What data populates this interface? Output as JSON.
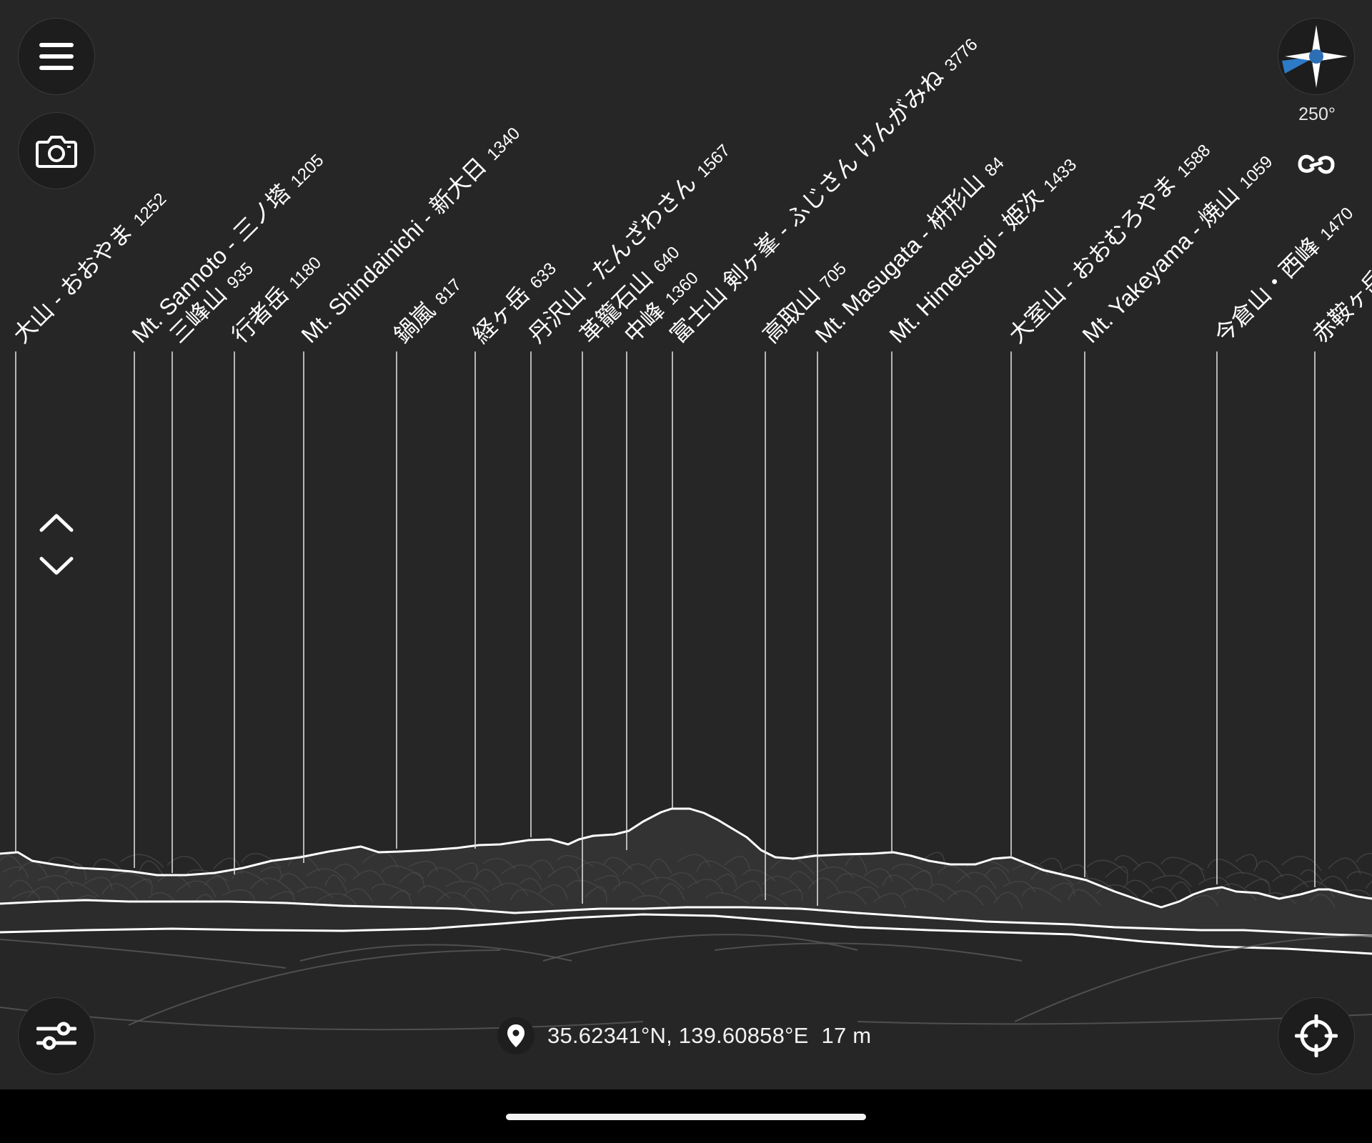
{
  "compass": {
    "heading": "250°"
  },
  "location": {
    "coordinates": "35.62341°N, 139.60858°E",
    "altitude": "17 m"
  },
  "peaks": [
    {
      "name": "大山 - おおやま",
      "elevation": "1252"
    },
    {
      "name": "Mt. Sannoto - 三ノ塔",
      "elevation": "1205"
    },
    {
      "name": "三峰山",
      "elevation": "935"
    },
    {
      "name": "行者岳",
      "elevation": "1180"
    },
    {
      "name": "Mt. Shindainichi - 新大日",
      "elevation": "1340"
    },
    {
      "name": "鍋嵐",
      "elevation": "817"
    },
    {
      "name": "経ヶ岳",
      "elevation": "633"
    },
    {
      "name": "丹沢山 - たんざわさん",
      "elevation": "1567"
    },
    {
      "name": "革籠石山",
      "elevation": "640"
    },
    {
      "name": "中峰",
      "elevation": "1360"
    },
    {
      "name": "富士山 剣ヶ峯 - ふじさん けんがみね",
      "elevation": "3776"
    },
    {
      "name": "高取山",
      "elevation": "705"
    },
    {
      "name": "Mt. Masugata - 枡形山",
      "elevation": "84"
    },
    {
      "name": "Mt. Himetsugi - 姫次",
      "elevation": "1433"
    },
    {
      "name": "大室山 - おおむろやま",
      "elevation": "1588"
    },
    {
      "name": "Mt. Yakeyama - 焼山",
      "elevation": "1059"
    },
    {
      "name": "今倉山・西峰",
      "elevation": "1470"
    },
    {
      "name": "赤鞍ヶ岳",
      "elevation": ""
    }
  ],
  "icons": {
    "menu": "menu-icon",
    "camera": "camera-icon",
    "compass": "compass-icon",
    "link": "link-icon",
    "tilt_up": "chevron-up-icon",
    "tilt_down": "chevron-down-icon",
    "settings": "sliders-icon",
    "location_pin": "location-pin-icon",
    "locate": "crosshair-icon"
  },
  "colors": {
    "background": "#262626",
    "ridge": "#ffffff",
    "compass_beam": "#2e7fd1",
    "compass_dot": "#2c6fb5"
  }
}
